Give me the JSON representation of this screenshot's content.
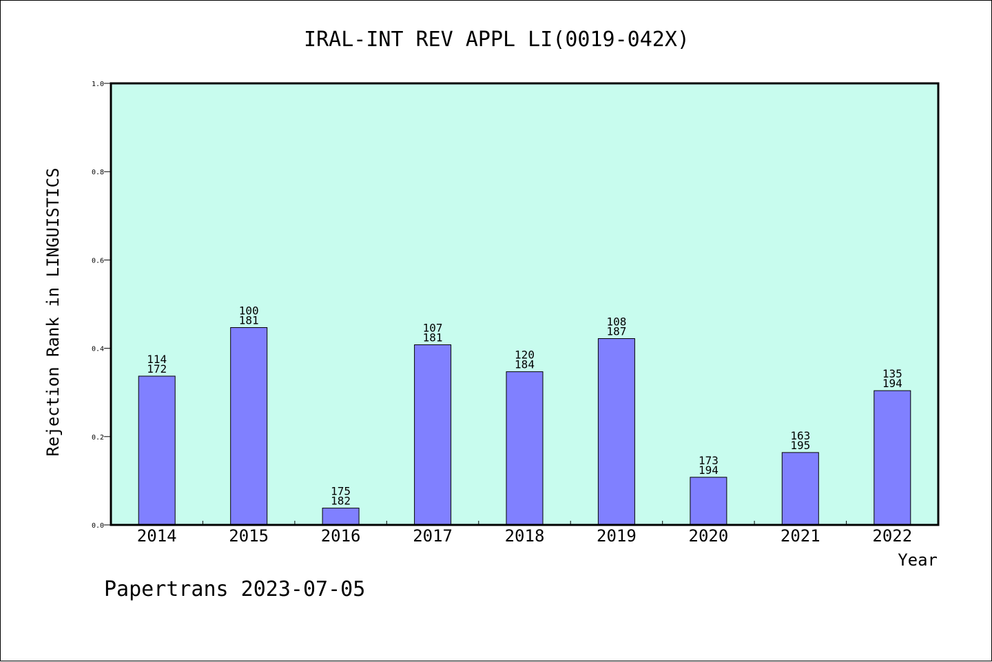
{
  "chart_data": {
    "type": "bar",
    "title": "IRAL-INT REV APPL LI(0019-042X)",
    "xlabel": "Year",
    "ylabel": "Rejection Rank in LINGUISTICS",
    "ylim": [
      0,
      1.0
    ],
    "yticks": [
      "0.0",
      "0.2",
      "0.4",
      "0.6",
      "0.8",
      "1.0"
    ],
    "ytick_values": [
      0,
      0.2,
      0.4,
      0.6,
      0.8,
      1.0
    ],
    "categories": [
      "2014",
      "2015",
      "2016",
      "2017",
      "2018",
      "2019",
      "2020",
      "2021",
      "2022"
    ],
    "values": [
      0.337,
      0.447,
      0.038,
      0.408,
      0.347,
      0.422,
      0.108,
      0.164,
      0.304
    ],
    "label_top": [
      "114",
      "100",
      "175",
      "107",
      "120",
      "108",
      "173",
      "163",
      "135"
    ],
    "label_bottom": [
      "172",
      "181",
      "182",
      "181",
      "184",
      "187",
      "194",
      "195",
      "194"
    ],
    "grid": false,
    "colors": {
      "plot_background": "#c8fcee",
      "bar_fill": "#8080ff",
      "bar_stroke": "#000000",
      "axis": "#000000"
    }
  },
  "footer": {
    "text": "Papertrans 2023-07-05"
  }
}
